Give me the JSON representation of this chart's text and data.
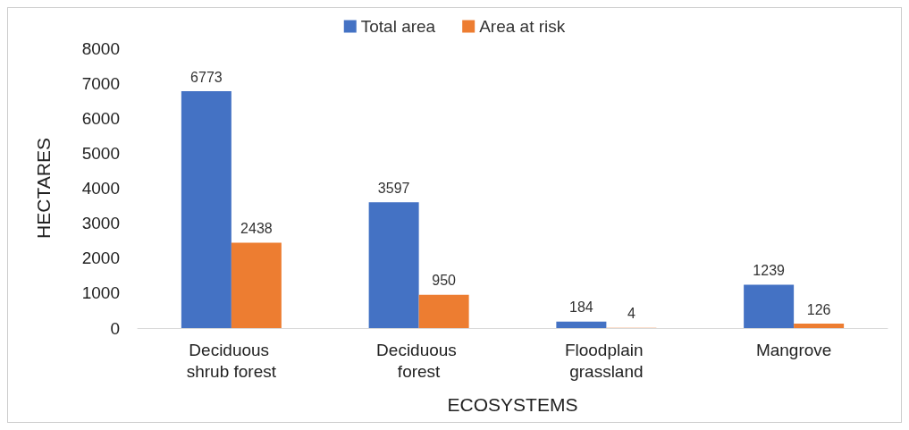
{
  "chart_data": {
    "type": "bar",
    "xlabel": "ECOSYSTEMS",
    "ylabel": "HECTARES",
    "categories": [
      "Deciduous shrub forest",
      "Deciduous forest",
      "Floodplain grassland",
      "Mangrove"
    ],
    "series": [
      {
        "name": "Total area",
        "color": "#4472c4",
        "values": [
          6773,
          3597,
          184,
          1239
        ]
      },
      {
        "name": "Area at risk",
        "color": "#ed7d31",
        "values": [
          2438,
          950,
          4,
          126
        ]
      }
    ],
    "ylim": [
      0,
      8000
    ],
    "yticks": [
      0,
      1000,
      2000,
      3000,
      4000,
      5000,
      6000,
      7000,
      8000
    ],
    "grid": false,
    "legend": "top",
    "data_labels": true
  }
}
